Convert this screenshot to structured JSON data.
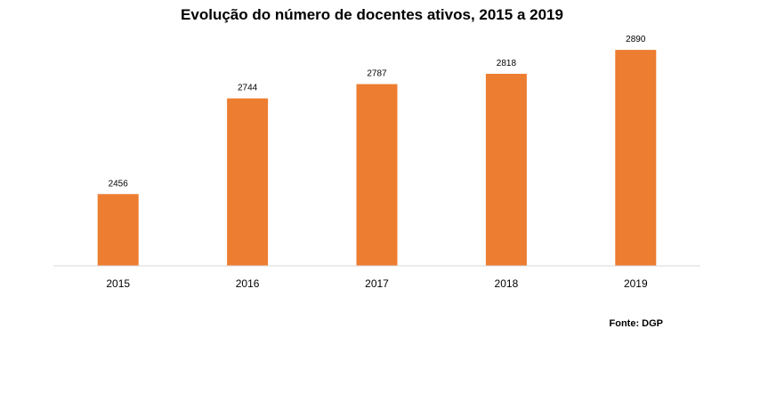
{
  "chart_data": {
    "type": "bar",
    "title": "Evolução do número de docentes ativos, 2015 a 2019",
    "categories": [
      "2015",
      "2016",
      "2017",
      "2018",
      "2019"
    ],
    "values": [
      2456,
      2744,
      2787,
      2818,
      2890
    ],
    "data_labels": [
      "2456",
      "2744",
      "2787",
      "2818",
      "2890"
    ],
    "xlabel": "",
    "ylabel": "",
    "ylim": [
      2240,
      3000
    ],
    "grid": false,
    "legend": "none",
    "bar_color": "#ED7D31",
    "axis_color": "#D9D9D9"
  },
  "source_note": "Fonte: DGP"
}
